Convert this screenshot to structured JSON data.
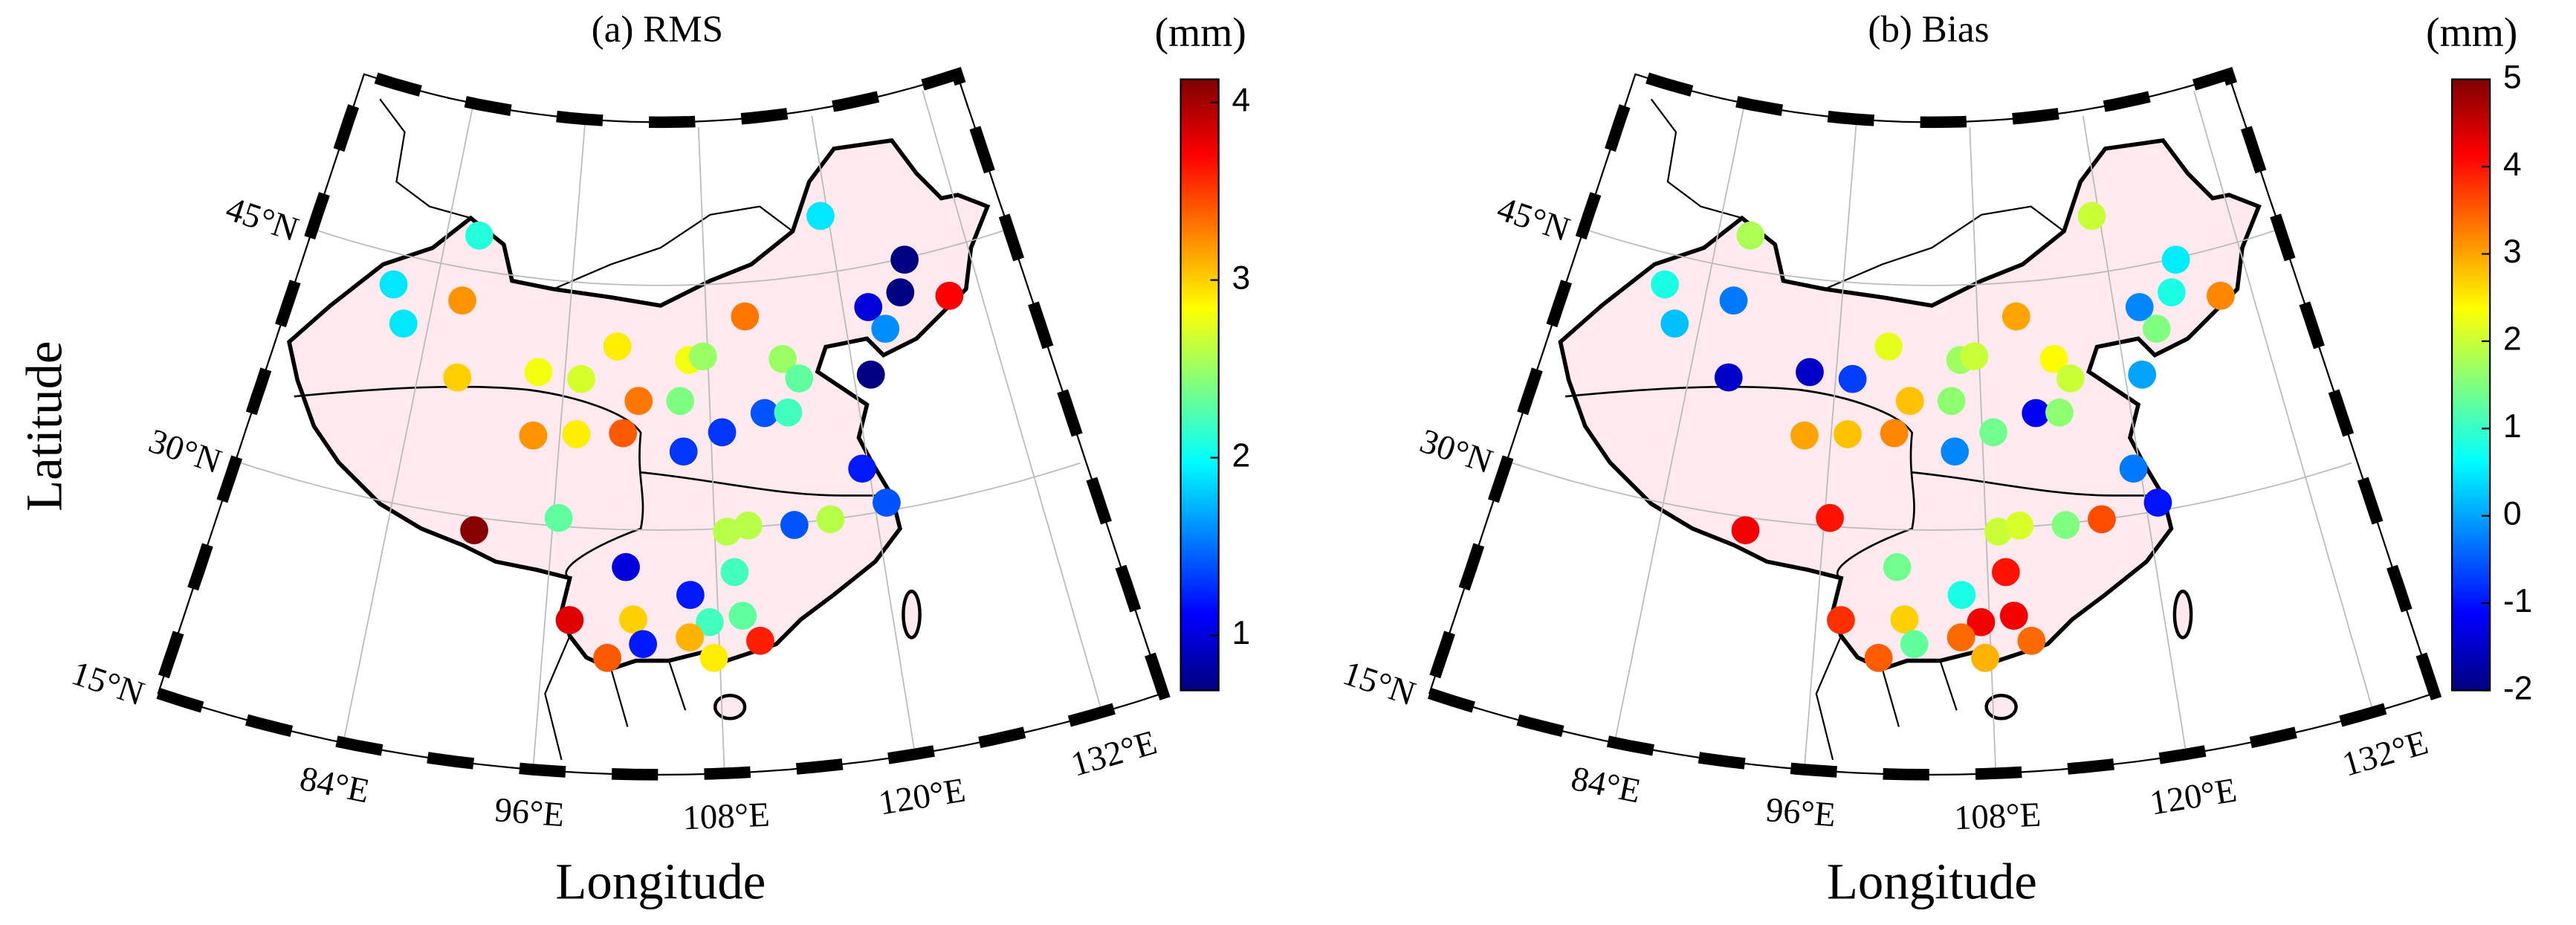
{
  "chart_data": [
    {
      "type": "map",
      "title": "(a) RMS",
      "xlabel": "Longitude",
      "ylabel": "Latitude",
      "lonlim": [
        72,
        136
      ],
      "latlim": [
        15,
        55
      ],
      "xticks": [
        {
          "value": 84,
          "label": "84°E"
        },
        {
          "value": 96,
          "label": "96°E"
        },
        {
          "value": 108,
          "label": "108°E"
        },
        {
          "value": 120,
          "label": "120°E"
        },
        {
          "value": 132,
          "label": "132°E"
        }
      ],
      "yticks": [
        {
          "value": 15,
          "label": "15°N"
        },
        {
          "value": 30,
          "label": "30°N"
        },
        {
          "value": 45,
          "label": "45°N"
        }
      ],
      "colorbar": {
        "label": "(mm)",
        "clim": [
          0.69,
          4.13
        ],
        "ticks": [
          1,
          2,
          3,
          4
        ],
        "colormap": "jet"
      },
      "x": [
        87.0,
        119.3,
        80.3,
        81.9,
        86.5,
        126.2,
        125.2,
        122.2,
        129.3,
        123.3,
        111.4,
        100.3,
        106.4,
        107.6,
        114.3,
        115.5,
        93.8,
        97.4,
        87.2,
        121.4,
        102.2,
        105.6,
        112.4,
        114.3,
        108.9,
        93.9,
        97.3,
        101.0,
        105.8,
        119.5,
        120.9,
        96.4,
        90.3,
        108.9,
        110.5,
        113.9,
        116.6,
        101.5,
        109.3,
        106.1,
        109.7,
        97.7,
        102.1,
        107.4,
        102.8,
        106.0,
        110.8,
        100.4,
        107.6
      ],
      "y": [
        47.1,
        48.5,
        43.1,
        40.9,
        43.0,
        44.9,
        43.0,
        42.5,
        42.1,
        41.0,
        42.9,
        41.2,
        40.4,
        40.6,
        40.1,
        38.8,
        39.3,
        39.1,
        38.3,
        38.4,
        37.9,
        37.9,
        36.9,
        36.8,
        35.9,
        35.4,
        35.7,
        35.9,
        34.8,
        32.8,
        30.5,
        30.5,
        29.2,
        29.8,
        30.1,
        29.9,
        30.0,
        27.7,
        27.3,
        26.0,
        24.6,
        24.3,
        24.5,
        24.3,
        23.0,
        23.4,
        23.0,
        22.1,
        22.1
      ],
      "values": [
        2.1,
        1.9,
        1.9,
        1.9,
        3.2,
        0.7,
        0.7,
        1.0,
        3.7,
        1.6,
        3.3,
        2.9,
        2.8,
        2.5,
        2.5,
        2.3,
        2.8,
        2.7,
        3.0,
        0.7,
        3.3,
        2.4,
        1.4,
        2.2,
        1.3,
        3.2,
        2.9,
        3.4,
        1.3,
        1.2,
        1.4,
        2.3,
        4.1,
        2.6,
        2.6,
        1.4,
        2.6,
        1.0,
        2.2,
        1.2,
        2.3,
        3.8,
        3.0,
        2.2,
        1.2,
        3.1,
        3.6,
        3.4,
        2.9
      ]
    },
    {
      "type": "map",
      "title": "(b) Bias",
      "xlabel": "Longitude",
      "lonlim": [
        72,
        136
      ],
      "latlim": [
        15,
        55
      ],
      "xticks": [
        {
          "value": 84,
          "label": "84°E"
        },
        {
          "value": 96,
          "label": "96°E"
        },
        {
          "value": 108,
          "label": "108°E"
        },
        {
          "value": 120,
          "label": "120°E"
        },
        {
          "value": 132,
          "label": "132°E"
        }
      ],
      "yticks": [
        {
          "value": 15,
          "label": "15°N"
        },
        {
          "value": 30,
          "label": "30°N"
        },
        {
          "value": 45,
          "label": "45°N"
        }
      ],
      "colorbar": {
        "label": "(mm)",
        "clim": [
          -2,
          5
        ],
        "ticks": [
          -2,
          -1,
          0,
          1,
          2,
          3,
          4,
          5
        ],
        "colormap": "jet"
      },
      "x": [
        87.0,
        119.3,
        80.3,
        81.9,
        86.5,
        126.2,
        125.2,
        122.2,
        129.3,
        123.3,
        111.4,
        100.3,
        106.4,
        107.6,
        114.3,
        115.5,
        93.8,
        97.4,
        87.2,
        121.4,
        102.2,
        105.6,
        112.4,
        114.3,
        108.9,
        93.9,
        97.3,
        101.0,
        105.8,
        119.5,
        120.9,
        96.4,
        90.3,
        108.9,
        110.5,
        113.9,
        116.6,
        101.5,
        109.3,
        106.1,
        109.7,
        97.7,
        102.1,
        107.4,
        102.8,
        106.0,
        110.8,
        100.4,
        107.6
      ],
      "y": [
        47.1,
        48.5,
        43.1,
        40.9,
        43.0,
        44.9,
        43.0,
        42.5,
        42.1,
        41.0,
        42.9,
        41.2,
        40.4,
        40.6,
        40.1,
        38.8,
        39.3,
        39.1,
        38.3,
        38.4,
        37.9,
        37.9,
        36.9,
        36.8,
        35.9,
        35.4,
        35.7,
        35.9,
        34.8,
        32.8,
        30.5,
        30.5,
        29.2,
        29.8,
        30.1,
        29.9,
        30.0,
        27.7,
        27.3,
        26.0,
        24.6,
        24.3,
        24.5,
        24.3,
        23.0,
        23.4,
        23.0,
        22.1,
        22.1
      ],
      "values": [
        1.8,
        2.0,
        0.8,
        0.2,
        -0.3,
        0.5,
        0.8,
        -0.2,
        3.2,
        1.5,
        3.0,
        2.2,
        1.7,
        2.0,
        2.4,
        2.0,
        -1.5,
        -0.7,
        -1.5,
        0.0,
        2.8,
        1.6,
        -1.2,
        1.6,
        1.4,
        3.0,
        2.8,
        3.2,
        -0.2,
        -0.3,
        -1.0,
        4.0,
        4.2,
        2.0,
        2.1,
        1.5,
        3.6,
        1.4,
        4.0,
        0.8,
        4.2,
        3.8,
        2.7,
        4.2,
        1.3,
        3.4,
        3.4,
        3.5,
        2.9
      ]
    }
  ]
}
